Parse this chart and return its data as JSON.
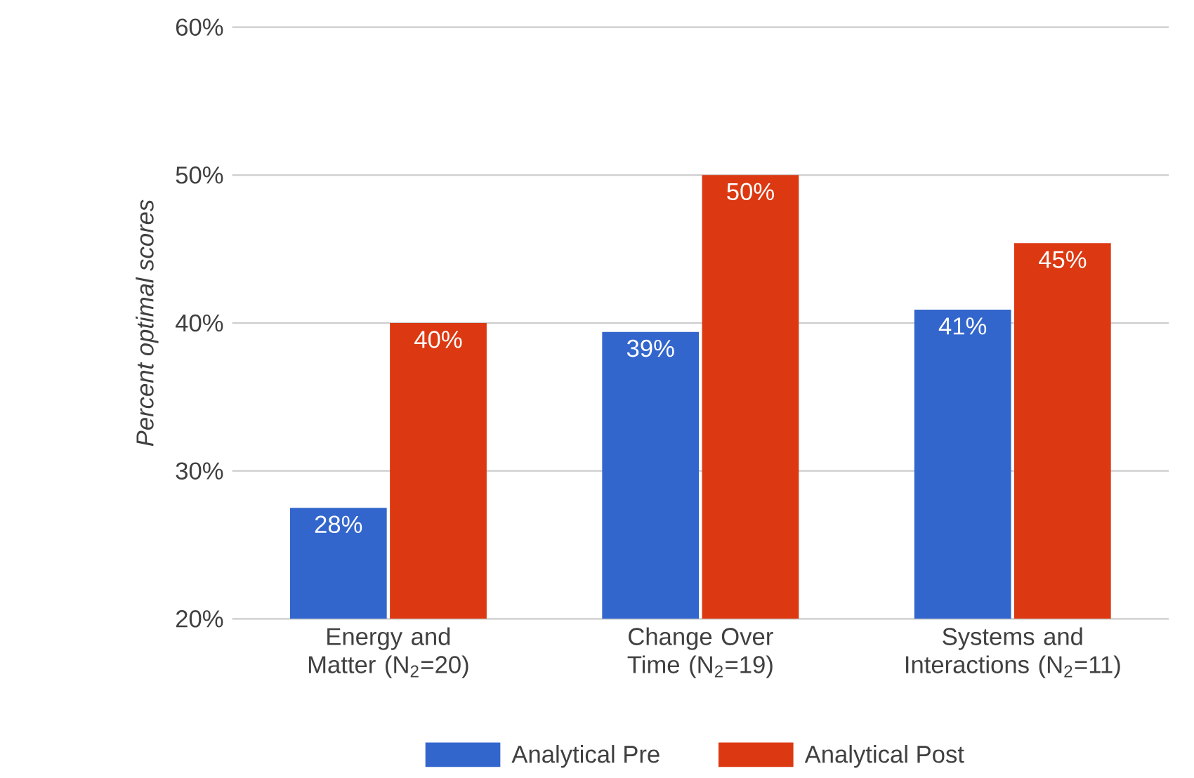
{
  "chart_data": {
    "type": "bar",
    "ylabel": "Percent optimal scores",
    "categories": [
      "Energy and Matter (N$_{2}$=20)",
      "Change Over Time (N$_{2}$=19)",
      "Systems and Interactions (N$_{2}$=11)"
    ],
    "series": [
      {
        "name": "Analytical Pre",
        "color": "#3366cc",
        "values": [
          27.5,
          39.4,
          40.9
        ],
        "value_labels": [
          "28%",
          "39%",
          "41%"
        ]
      },
      {
        "name": "Analytical Post",
        "color": "#dc3912",
        "values": [
          40,
          50,
          45.4
        ],
        "value_labels": [
          "40%",
          "50%",
          "45%"
        ]
      }
    ],
    "ylim": [
      20,
      60
    ],
    "yticks": [
      {
        "value": 20,
        "label": "20%"
      },
      {
        "value": 30,
        "label": "30%"
      },
      {
        "value": 40,
        "label": "40%"
      },
      {
        "value": 50,
        "label": "50%"
      },
      {
        "value": 60,
        "label": "60%"
      }
    ],
    "grid": "y",
    "legend": "bottom"
  }
}
